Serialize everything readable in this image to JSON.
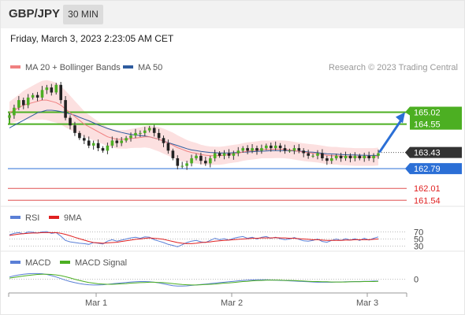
{
  "header": {
    "symbol": "GBP/JPY",
    "timeframe": "30 MIN"
  },
  "datetime": "Friday, March 3, 2023 2:23:05 AM CET",
  "legend": {
    "ma20": {
      "label": "MA 20 + Bollinger Bands",
      "color": "#f08080"
    },
    "ma50": {
      "label": "MA 50",
      "color": "#2f5c9e"
    }
  },
  "research": "Research © 2023 Trading Central",
  "rsi_legend": {
    "rsi": "RSI",
    "ma9": "9MA",
    "rsi_color": "#5a7fd6",
    "ma9_color": "#e02020"
  },
  "macd_legend": {
    "macd": "MACD",
    "signal": "MACD Signal",
    "macd_color": "#5a7fd6",
    "signal_color": "#4caf22"
  },
  "x_labels": [
    "Mar 1",
    "Mar 2",
    "Mar 3"
  ],
  "chart_data": {
    "type": "candlestick",
    "price_range": [
      161.3,
      166.5
    ],
    "levels": [
      {
        "value": "165.02",
        "kind": "resistance",
        "color": "#4caf22"
      },
      {
        "value": "164.55",
        "kind": "resistance",
        "color": "#4caf22"
      },
      {
        "value": "163.43",
        "kind": "last_price",
        "color": "#333333"
      },
      {
        "value": "162.79",
        "kind": "support",
        "color": "#2b6fd6"
      },
      {
        "value": "162.01",
        "kind": "support",
        "color": "#e05050"
      },
      {
        "value": "161.54",
        "kind": "support",
        "color": "#e05050"
      }
    ],
    "close": [
      164.9,
      165.2,
      165.5,
      165.3,
      165.6,
      165.7,
      165.6,
      165.9,
      166.0,
      165.8,
      166.1,
      165.5,
      164.8,
      164.5,
      164.2,
      164.0,
      163.9,
      163.7,
      163.8,
      163.6,
      163.5,
      163.7,
      163.9,
      163.8,
      163.9,
      164.0,
      164.1,
      164.2,
      164.2,
      164.3,
      164.4,
      164.2,
      164.0,
      163.8,
      163.5,
      163.2,
      162.9,
      162.9,
      163.0,
      163.2,
      163.3,
      163.1,
      163.0,
      163.2,
      163.4,
      163.3,
      163.4,
      163.3,
      163.4,
      163.5,
      163.6,
      163.5,
      163.6,
      163.5,
      163.6,
      163.7,
      163.6,
      163.7,
      163.6,
      163.5,
      163.5,
      163.6,
      163.5,
      163.4,
      163.3,
      163.3,
      163.4,
      163.2,
      163.1,
      163.2,
      163.3,
      163.2,
      163.3,
      163.2,
      163.3,
      163.2,
      163.3,
      163.2,
      163.3,
      163.4
    ],
    "ma20": [
      165.0,
      165.1,
      165.2,
      165.3,
      165.35,
      165.4,
      165.45,
      165.5,
      165.5,
      165.45,
      165.4,
      165.3,
      165.15,
      165.0,
      164.85,
      164.7,
      164.55,
      164.45,
      164.35,
      164.25,
      164.15,
      164.05,
      164.0,
      163.95,
      163.95,
      163.95,
      163.98,
      164.0,
      164.02,
      164.05,
      164.05,
      164.0,
      163.95,
      163.88,
      163.8,
      163.72,
      163.62,
      163.55,
      163.48,
      163.43,
      163.4,
      163.35,
      163.32,
      163.3,
      163.3,
      163.3,
      163.32,
      163.35,
      163.38,
      163.4,
      163.45,
      163.48,
      163.5,
      163.52,
      163.55,
      163.55,
      163.55,
      163.56,
      163.56,
      163.55,
      163.53,
      163.5,
      163.47,
      163.44,
      163.42,
      163.4,
      163.38,
      163.35,
      163.32,
      163.3,
      163.3,
      163.28,
      163.27,
      163.26,
      163.25,
      163.25,
      163.25,
      163.25,
      163.25,
      163.27
    ],
    "ma50": [
      164.4,
      164.5,
      164.6,
      164.7,
      164.8,
      164.9,
      165.0,
      165.05,
      165.1,
      165.1,
      165.08,
      165.05,
      165.0,
      164.95,
      164.9,
      164.82,
      164.75,
      164.68,
      164.6,
      164.52,
      164.45,
      164.38,
      164.32,
      164.27,
      164.22,
      164.18,
      164.14,
      164.12,
      164.1,
      164.08,
      164.05,
      164.0,
      163.95,
      163.88,
      163.82,
      163.76,
      163.7,
      163.64,
      163.58,
      163.53,
      163.5,
      163.47,
      163.45,
      163.43,
      163.42,
      163.41,
      163.41,
      163.41,
      163.42,
      163.43,
      163.44,
      163.45,
      163.46,
      163.47,
      163.48,
      163.49,
      163.5,
      163.5,
      163.5,
      163.5,
      163.5,
      163.49,
      163.48,
      163.47,
      163.45,
      163.44,
      163.42,
      163.4,
      163.38,
      163.37,
      163.36,
      163.35,
      163.34,
      163.33,
      163.33,
      163.32,
      163.32,
      163.31,
      163.31,
      163.31
    ],
    "rsi_range": [
      20,
      80
    ],
    "rsi_levels": [
      70,
      50,
      30
    ],
    "rsi": [
      62,
      66,
      68,
      65,
      70,
      69,
      67,
      70,
      71,
      66,
      68,
      58,
      46,
      42,
      40,
      38,
      37,
      35,
      40,
      38,
      36,
      44,
      48,
      44,
      47,
      50,
      53,
      55,
      52,
      56,
      55,
      48,
      44,
      40,
      35,
      32,
      28,
      34,
      40,
      44,
      46,
      42,
      40,
      46,
      52,
      48,
      51,
      47,
      52,
      55,
      57,
      52,
      55,
      50,
      55,
      57,
      52,
      55,
      51,
      48,
      50,
      54,
      49,
      45,
      44,
      46,
      50,
      43,
      41,
      46,
      50,
      46,
      51,
      47,
      51,
      46,
      52,
      47,
      52,
      56
    ],
    "rsi_ma9": [
      60,
      62,
      64,
      65,
      66,
      67,
      67,
      68,
      68,
      68,
      68,
      66,
      63,
      59,
      55,
      51,
      47,
      43,
      40,
      39,
      38,
      39,
      40,
      41,
      43,
      45,
      47,
      49,
      50,
      52,
      53,
      52,
      51,
      49,
      46,
      43,
      40,
      38,
      37,
      37,
      38,
      40,
      41,
      42,
      44,
      45,
      46,
      47,
      48,
      49,
      50,
      51,
      52,
      52,
      53,
      53,
      53,
      54,
      53,
      53,
      52,
      52,
      51,
      50,
      49,
      48,
      48,
      47,
      46,
      46,
      46,
      46,
      47,
      47,
      48,
      48,
      48,
      48,
      49,
      50
    ],
    "macd_range": [
      -0.6,
      0.4
    ],
    "macd_levels": [
      0
    ],
    "macd": [
      0.1,
      0.15,
      0.19,
      0.22,
      0.24,
      0.25,
      0.25,
      0.24,
      0.21,
      0.16,
      0.1,
      0.03,
      -0.04,
      -0.1,
      -0.15,
      -0.19,
      -0.22,
      -0.24,
      -0.25,
      -0.25,
      -0.24,
      -0.22,
      -0.2,
      -0.18,
      -0.16,
      -0.14,
      -0.12,
      -0.11,
      -0.1,
      -0.1,
      -0.11,
      -0.13,
      -0.16,
      -0.2,
      -0.24,
      -0.28,
      -0.3,
      -0.3,
      -0.29,
      -0.27,
      -0.25,
      -0.23,
      -0.21,
      -0.19,
      -0.17,
      -0.15,
      -0.13,
      -0.11,
      -0.09,
      -0.07,
      -0.05,
      -0.04,
      -0.03,
      -0.02,
      -0.02,
      -0.02,
      -0.03,
      -0.04,
      -0.05,
      -0.06,
      -0.07,
      -0.08,
      -0.09,
      -0.1,
      -0.11,
      -0.12,
      -0.13,
      -0.13,
      -0.13,
      -0.13,
      -0.12,
      -0.12,
      -0.11,
      -0.11,
      -0.1,
      -0.1,
      -0.09,
      -0.09,
      -0.08,
      -0.08
    ],
    "macd_signal": [
      0.05,
      0.08,
      0.11,
      0.14,
      0.17,
      0.19,
      0.21,
      0.22,
      0.22,
      0.21,
      0.19,
      0.16,
      0.11,
      0.06,
      0.0,
      -0.05,
      -0.1,
      -0.14,
      -0.17,
      -0.2,
      -0.21,
      -0.22,
      -0.22,
      -0.21,
      -0.2,
      -0.19,
      -0.17,
      -0.16,
      -0.15,
      -0.14,
      -0.13,
      -0.13,
      -0.14,
      -0.15,
      -0.17,
      -0.19,
      -0.21,
      -0.23,
      -0.24,
      -0.25,
      -0.25,
      -0.24,
      -0.23,
      -0.22,
      -0.21,
      -0.19,
      -0.17,
      -0.16,
      -0.14,
      -0.12,
      -0.1,
      -0.09,
      -0.07,
      -0.06,
      -0.05,
      -0.04,
      -0.04,
      -0.04,
      -0.04,
      -0.05,
      -0.05,
      -0.06,
      -0.07,
      -0.08,
      -0.09,
      -0.1,
      -0.1,
      -0.11,
      -0.11,
      -0.12,
      -0.12,
      -0.12,
      -0.12,
      -0.11,
      -0.11,
      -0.11,
      -0.1,
      -0.1,
      -0.1,
      -0.09
    ]
  }
}
